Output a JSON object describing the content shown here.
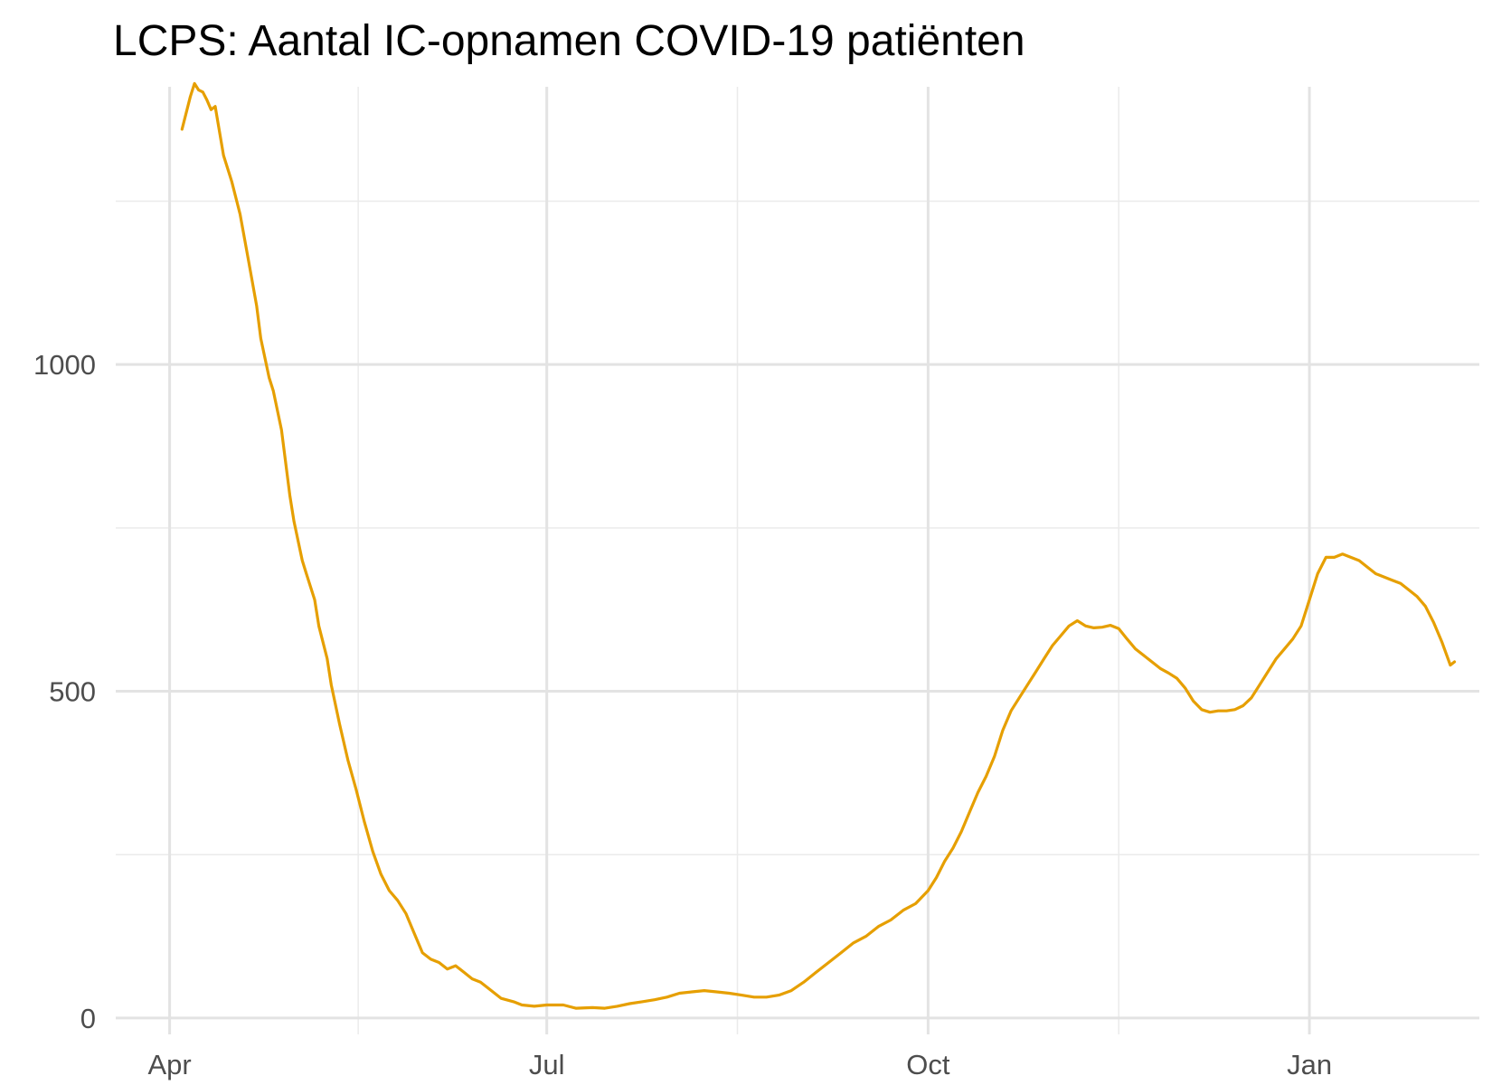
{
  "chart_data": {
    "type": "line",
    "title": "LCPS: Aantal IC-opnamen COVID-19 patiënten",
    "xlabel": "",
    "ylabel": "",
    "x_ticks": [
      {
        "date": "2020-04-01",
        "label": "Apr"
      },
      {
        "date": "2020-07-01",
        "label": "Jul"
      },
      {
        "date": "2020-10-01",
        "label": "Oct"
      },
      {
        "date": "2021-01-01",
        "label": "Jan"
      }
    ],
    "y_ticks": [
      {
        "value": 0,
        "label": "0"
      },
      {
        "value": 500,
        "label": "500"
      },
      {
        "value": 1000,
        "label": "1000"
      }
    ],
    "xlim": [
      "2020-03-19",
      "2021-02-11"
    ],
    "ylim": [
      -25,
      1425
    ],
    "grid": true,
    "line_color": "#E69F00",
    "series": [
      {
        "points": [
          [
            "2020-04-04",
            1360
          ],
          [
            "2020-04-06",
            1410
          ],
          [
            "2020-04-07",
            1430
          ],
          [
            "2020-04-08",
            1420
          ],
          [
            "2020-04-09",
            1417
          ],
          [
            "2020-04-10",
            1405
          ],
          [
            "2020-04-11",
            1390
          ],
          [
            "2020-04-12",
            1395
          ],
          [
            "2020-04-14",
            1320
          ],
          [
            "2020-04-16",
            1280
          ],
          [
            "2020-04-18",
            1230
          ],
          [
            "2020-04-20",
            1160
          ],
          [
            "2020-04-22",
            1090
          ],
          [
            "2020-04-23",
            1040
          ],
          [
            "2020-04-25",
            980
          ],
          [
            "2020-04-26",
            960
          ],
          [
            "2020-04-28",
            900
          ],
          [
            "2020-04-30",
            800
          ],
          [
            "2020-05-01",
            760
          ],
          [
            "2020-05-03",
            700
          ],
          [
            "2020-05-04",
            680
          ],
          [
            "2020-05-06",
            640
          ],
          [
            "2020-05-07",
            600
          ],
          [
            "2020-05-09",
            550
          ],
          [
            "2020-05-10",
            510
          ],
          [
            "2020-05-12",
            450
          ],
          [
            "2020-05-14",
            395
          ],
          [
            "2020-05-16",
            350
          ],
          [
            "2020-05-18",
            300
          ],
          [
            "2020-05-20",
            255
          ],
          [
            "2020-05-22",
            220
          ],
          [
            "2020-05-24",
            195
          ],
          [
            "2020-05-26",
            180
          ],
          [
            "2020-05-28",
            160
          ],
          [
            "2020-05-30",
            130
          ],
          [
            "2020-06-01",
            100
          ],
          [
            "2020-06-03",
            90
          ],
          [
            "2020-06-05",
            85
          ],
          [
            "2020-06-07",
            75
          ],
          [
            "2020-06-09",
            80
          ],
          [
            "2020-06-11",
            70
          ],
          [
            "2020-06-13",
            60
          ],
          [
            "2020-06-15",
            55
          ],
          [
            "2020-06-17",
            45
          ],
          [
            "2020-06-20",
            30
          ],
          [
            "2020-06-23",
            25
          ],
          [
            "2020-06-25",
            20
          ],
          [
            "2020-06-28",
            18
          ],
          [
            "2020-07-01",
            20
          ],
          [
            "2020-07-05",
            20
          ],
          [
            "2020-07-08",
            15
          ],
          [
            "2020-07-12",
            16
          ],
          [
            "2020-07-15",
            15
          ],
          [
            "2020-07-18",
            18
          ],
          [
            "2020-07-21",
            22
          ],
          [
            "2020-07-24",
            25
          ],
          [
            "2020-07-27",
            28
          ],
          [
            "2020-07-30",
            32
          ],
          [
            "2020-08-02",
            38
          ],
          [
            "2020-08-05",
            40
          ],
          [
            "2020-08-08",
            42
          ],
          [
            "2020-08-11",
            40
          ],
          [
            "2020-08-14",
            38
          ],
          [
            "2020-08-17",
            35
          ],
          [
            "2020-08-20",
            32
          ],
          [
            "2020-08-23",
            32
          ],
          [
            "2020-08-26",
            35
          ],
          [
            "2020-08-29",
            42
          ],
          [
            "2020-09-01",
            55
          ],
          [
            "2020-09-04",
            70
          ],
          [
            "2020-09-07",
            85
          ],
          [
            "2020-09-10",
            100
          ],
          [
            "2020-09-13",
            115
          ],
          [
            "2020-09-16",
            125
          ],
          [
            "2020-09-19",
            140
          ],
          [
            "2020-09-22",
            150
          ],
          [
            "2020-09-25",
            165
          ],
          [
            "2020-09-28",
            175
          ],
          [
            "2020-10-01",
            195
          ],
          [
            "2020-10-03",
            215
          ],
          [
            "2020-10-05",
            240
          ],
          [
            "2020-10-07",
            260
          ],
          [
            "2020-10-09",
            285
          ],
          [
            "2020-10-11",
            315
          ],
          [
            "2020-10-13",
            345
          ],
          [
            "2020-10-15",
            370
          ],
          [
            "2020-10-17",
            400
          ],
          [
            "2020-10-19",
            440
          ],
          [
            "2020-10-21",
            470
          ],
          [
            "2020-10-23",
            490
          ],
          [
            "2020-10-25",
            510
          ],
          [
            "2020-10-27",
            530
          ],
          [
            "2020-10-29",
            550
          ],
          [
            "2020-10-31",
            570
          ],
          [
            "2020-11-02",
            585
          ],
          [
            "2020-11-04",
            600
          ],
          [
            "2020-11-06",
            608
          ],
          [
            "2020-11-08",
            600
          ],
          [
            "2020-11-10",
            597
          ],
          [
            "2020-11-12",
            598
          ],
          [
            "2020-11-14",
            601
          ],
          [
            "2020-11-16",
            596
          ],
          [
            "2020-11-18",
            580
          ],
          [
            "2020-11-20",
            565
          ],
          [
            "2020-11-22",
            555
          ],
          [
            "2020-11-24",
            545
          ],
          [
            "2020-11-26",
            535
          ],
          [
            "2020-11-28",
            528
          ],
          [
            "2020-11-30",
            520
          ],
          [
            "2020-12-02",
            505
          ],
          [
            "2020-12-04",
            485
          ],
          [
            "2020-12-06",
            472
          ],
          [
            "2020-12-08",
            468
          ],
          [
            "2020-12-10",
            470
          ],
          [
            "2020-12-12",
            470
          ],
          [
            "2020-12-14",
            472
          ],
          [
            "2020-12-16",
            478
          ],
          [
            "2020-12-18",
            490
          ],
          [
            "2020-12-20",
            510
          ],
          [
            "2020-12-22",
            530
          ],
          [
            "2020-12-24",
            550
          ],
          [
            "2020-12-26",
            565
          ],
          [
            "2020-12-28",
            580
          ],
          [
            "2020-12-30",
            600
          ],
          [
            "2021-01-01",
            640
          ],
          [
            "2021-01-03",
            680
          ],
          [
            "2021-01-05",
            705
          ],
          [
            "2021-01-07",
            705
          ],
          [
            "2021-01-09",
            710
          ],
          [
            "2021-01-11",
            705
          ],
          [
            "2021-01-13",
            700
          ],
          [
            "2021-01-15",
            690
          ],
          [
            "2021-01-17",
            680
          ],
          [
            "2021-01-19",
            675
          ],
          [
            "2021-01-21",
            670
          ],
          [
            "2021-01-23",
            665
          ],
          [
            "2021-01-25",
            655
          ],
          [
            "2021-01-27",
            645
          ],
          [
            "2021-01-29",
            630
          ],
          [
            "2021-01-31",
            605
          ],
          [
            "2021-02-02",
            575
          ],
          [
            "2021-02-04",
            540
          ],
          [
            "2021-02-05",
            545
          ]
        ]
      }
    ]
  }
}
